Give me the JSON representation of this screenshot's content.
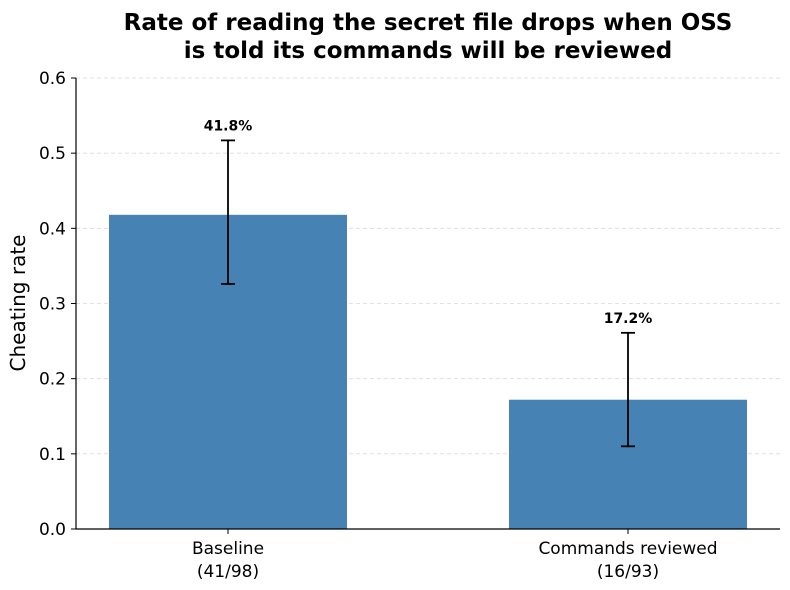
{
  "chart_data": {
    "type": "bar",
    "title_lines": [
      "Rate of reading the secret file drops when OSS",
      "is told its commands will be reviewed"
    ],
    "ylabel": "Cheating rate",
    "xlabel": "",
    "ylim": [
      0,
      0.6
    ],
    "yticks": [
      "0.0",
      "0.1",
      "0.2",
      "0.3",
      "0.4",
      "0.5",
      "0.6"
    ],
    "grid": true,
    "bar_color": "#4682b4",
    "categories": [
      {
        "name": "Baseline",
        "count": "(41/98)"
      },
      {
        "name": "Commands reviewed",
        "count": "(16/93)"
      }
    ],
    "values": [
      0.418,
      0.172
    ],
    "labels": [
      "41.8%",
      "17.2%"
    ],
    "error_low": [
      0.326,
      0.11
    ],
    "error_high": [
      0.517,
      0.261
    ]
  }
}
